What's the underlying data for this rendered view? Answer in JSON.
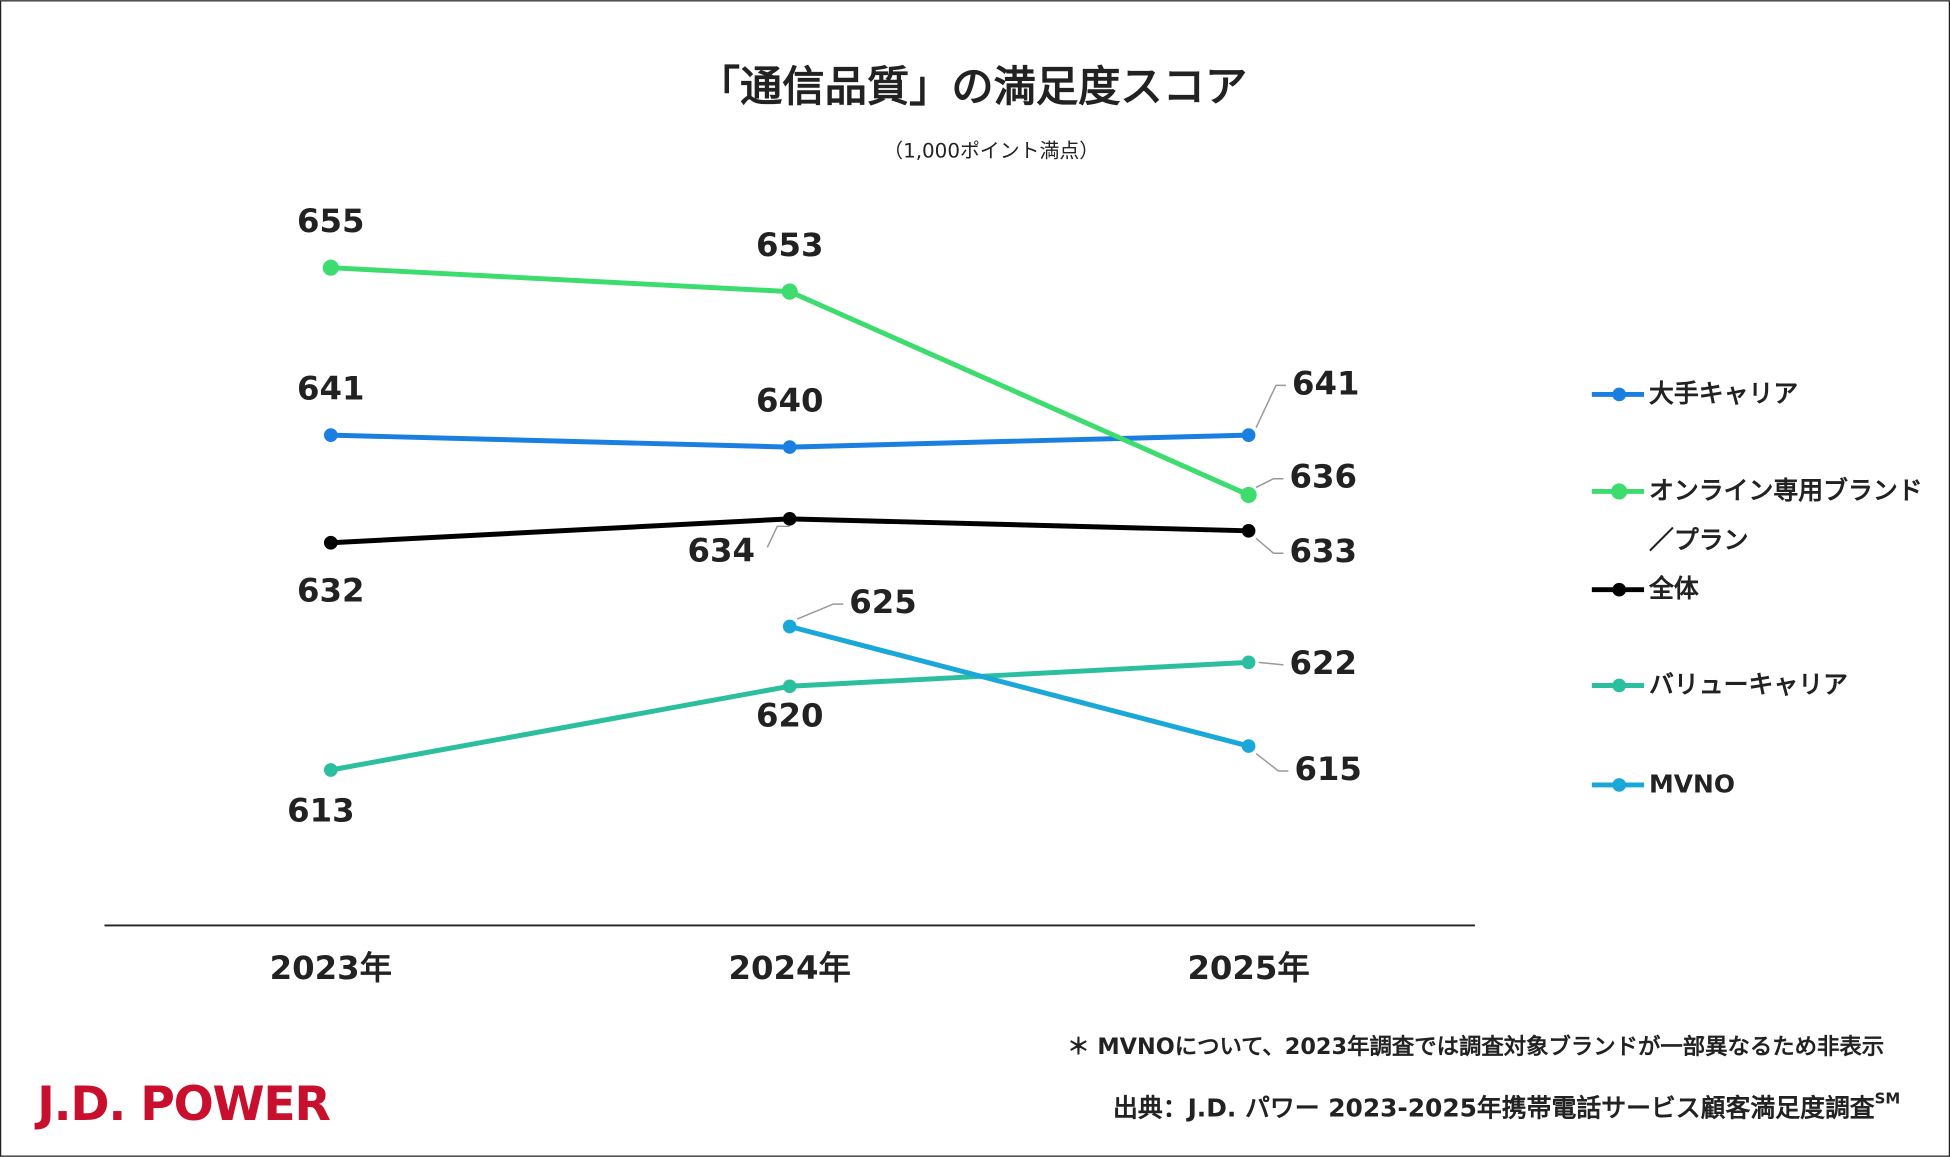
{
  "chart_data": {
    "type": "line",
    "title": "「通信品質」の満足度スコア",
    "subtitle": "（1,000ポイント満点）",
    "categories": [
      "2023年",
      "2024年",
      "2025年"
    ],
    "series": [
      {
        "name": "大手キャリア",
        "color": "#1a7fe0",
        "values": [
          641,
          640,
          641
        ]
      },
      {
        "name": "オンライン専用ブランド／プラン",
        "color": "#3ddc6e",
        "values": [
          655,
          653,
          636
        ]
      },
      {
        "name": "全体",
        "color": "#000000",
        "values": [
          632,
          634,
          633
        ]
      },
      {
        "name": "バリューキャリア",
        "color": "#2bbfa0",
        "values": [
          613,
          620,
          622
        ]
      },
      {
        "name": "MVNO",
        "color": "#1aa8d8",
        "values": [
          null,
          625,
          615
        ]
      }
    ],
    "ylim": [
      600,
      660
    ],
    "note": "＊ MVNOについて、2023年調査では調査対象ブランドが一部異なるため非表示",
    "source": "出典：J.D. パワー 2023-2025年携帯電話サービス顧客満足度調査",
    "source_mark": "SM",
    "logo": "J.D. POWER"
  }
}
